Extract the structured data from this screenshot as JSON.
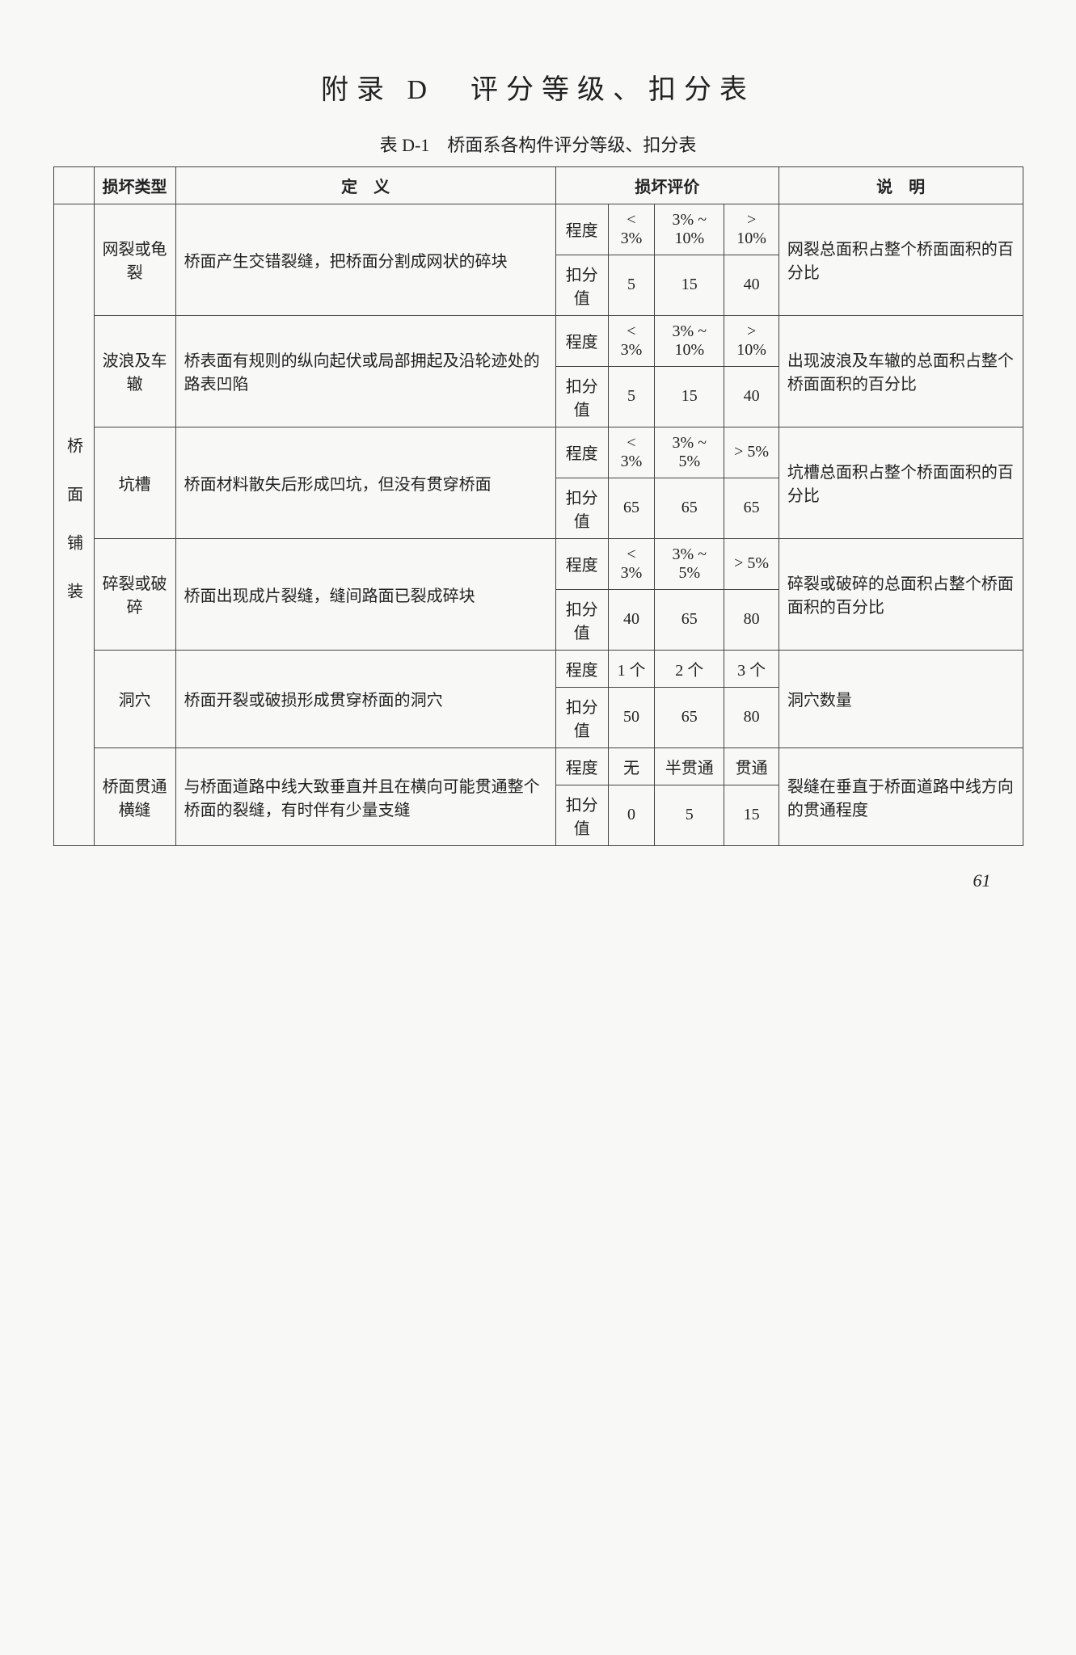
{
  "title": "附录 D　评分等级、扣分表",
  "table_caption": "表 D-1　桥面系各构件评分等级、扣分表",
  "page_number": "61",
  "headers": {
    "category": "",
    "damage_type": "损坏类型",
    "definition": "定　义",
    "evaluation": "损坏评价",
    "explain": "说　明"
  },
  "side_category": "桥　面　铺　装",
  "rows": [
    {
      "type": "网裂或龟裂",
      "definition": "桥面产生交错裂缝，把桥面分割成网状的碎块",
      "degree_label": "程度",
      "degrees": [
        "< 3%",
        "3% ~ 10%",
        "> 10%"
      ],
      "score_label": "扣分值",
      "scores": [
        "5",
        "15",
        "40"
      ],
      "explain": "网裂总面积占整个桥面面积的百分比"
    },
    {
      "type": "波浪及车辙",
      "definition": "桥表面有规则的纵向起伏或局部拥起及沿轮迹处的路表凹陷",
      "degree_label": "程度",
      "degrees": [
        "< 3%",
        "3% ~ 10%",
        "> 10%"
      ],
      "score_label": "扣分值",
      "scores": [
        "5",
        "15",
        "40"
      ],
      "explain": "出现波浪及车辙的总面积占整个桥面面积的百分比"
    },
    {
      "type": "坑槽",
      "definition": "桥面材料散失后形成凹坑，但没有贯穿桥面",
      "degree_label": "程度",
      "degrees": [
        "< 3%",
        "3% ~ 5%",
        "> 5%"
      ],
      "score_label": "扣分值",
      "scores": [
        "65",
        "65",
        "65"
      ],
      "explain": "坑槽总面积占整个桥面面积的百分比"
    },
    {
      "type": "碎裂或破碎",
      "definition": "桥面出现成片裂缝，缝间路面已裂成碎块",
      "degree_label": "程度",
      "degrees": [
        "< 3%",
        "3% ~ 5%",
        "> 5%"
      ],
      "score_label": "扣分值",
      "scores": [
        "40",
        "65",
        "80"
      ],
      "explain": "碎裂或破碎的总面积占整个桥面面积的百分比"
    },
    {
      "type": "洞穴",
      "definition": "桥面开裂或破损形成贯穿桥面的洞穴",
      "degree_label": "程度",
      "degrees": [
        "1 个",
        "2 个",
        "3 个"
      ],
      "score_label": "扣分值",
      "scores": [
        "50",
        "65",
        "80"
      ],
      "explain": "洞穴数量"
    },
    {
      "type": "桥面贯通横缝",
      "definition": "与桥面道路中线大致垂直并且在横向可能贯通整个桥面的裂缝，有时伴有少量支缝",
      "degree_label": "程度",
      "degrees": [
        "无",
        "半贯通",
        "贯通"
      ],
      "score_label": "扣分值",
      "scores": [
        "0",
        "5",
        "15"
      ],
      "explain": "裂缝在垂直于桥面道路中线方向的贯通程度"
    }
  ]
}
